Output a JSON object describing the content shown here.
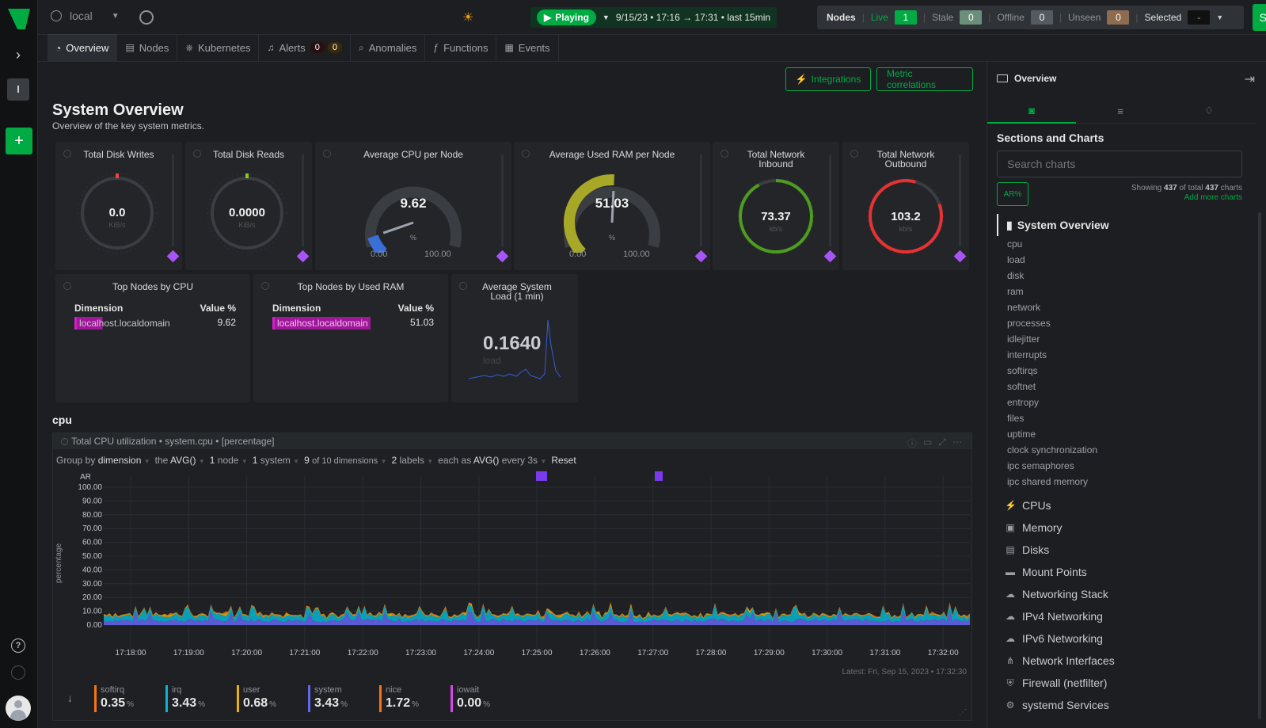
{
  "topbar": {
    "room": "local",
    "playing": "Playing",
    "time_range": "9/15/23 • 17:16 → 17:31 • last 15min",
    "nodes_label": "Nodes",
    "live_label": "Live",
    "live_count": "1",
    "stale_label": "Stale",
    "stale_count": "0",
    "offline_label": "Offline",
    "offline_count": "0",
    "unseen_label": "Unseen",
    "unseen_count": "0",
    "selected_label": "Selected",
    "selected_value": "-",
    "signin": "Sign in"
  },
  "leftbar": {
    "space_letter": "l"
  },
  "tabs": [
    {
      "label": "Overview"
    },
    {
      "label": "Nodes"
    },
    {
      "label": "Kubernetes"
    },
    {
      "label": "Alerts",
      "critical": "0",
      "warning": "0"
    },
    {
      "label": "Anomalies"
    },
    {
      "label": "Functions"
    },
    {
      "label": "Events"
    }
  ],
  "main": {
    "integrations": "Integrations",
    "metric_correlations": "Metric correlations",
    "title": "System Overview",
    "subtitle": "Overview of the key system metrics.",
    "gauges": [
      {
        "title": "Total Disk Writes",
        "value": "0.0",
        "unit": "KiB/s"
      },
      {
        "title": "Total Disk Reads",
        "value": "0.0000",
        "unit": "KiB/s"
      },
      {
        "title": "Average CPU per Node",
        "value": "9.62",
        "unit": "%",
        "min": "0.00",
        "max": "100.00",
        "fraction": 0.0962
      },
      {
        "title": "Average Used RAM per Node",
        "value": "51.03",
        "unit": "%",
        "min": "0.00",
        "max": "100.00",
        "fraction": 0.5103
      },
      {
        "title": "Total Network Inbound",
        "value": "73.37",
        "unit": "kb/s"
      },
      {
        "title": "Total Network Outbound",
        "value": "103.2",
        "unit": "kb/s"
      }
    ],
    "top_cpu": {
      "title": "Top Nodes by CPU",
      "dim_header": "Dimension",
      "val_header": "Value %",
      "rows": [
        {
          "name": "localhost.localdomain",
          "value": "9.62"
        }
      ]
    },
    "top_ram": {
      "title": "Top Nodes by Used RAM",
      "dim_header": "Dimension",
      "val_header": "Value %",
      "rows": [
        {
          "name": "localhost.localdomain",
          "value": "51.03"
        }
      ]
    },
    "load": {
      "title": "Average System Load (1 min)",
      "value": "0.1640",
      "unit": "load"
    },
    "section": "cpu"
  },
  "cpu_chart": {
    "title": "Total CPU utilization • system.cpu • [percentage]",
    "controls": {
      "group_by": "Group by",
      "group_val": "dimension",
      "agg_pre": "the",
      "agg": "AVG()",
      "nodes": "1",
      "nodes_label": "node",
      "systems": "1",
      "systems_label": "system",
      "dims": "9",
      "dims_label": "of 10 dimensions",
      "labels": "2",
      "labels_label": "labels",
      "each": "each as",
      "each_val": "AVG()",
      "every": "every 3s",
      "reset": "Reset"
    },
    "latest": "Latest: Fri, Sep 15, 2023 • 17:32:30",
    "ar_label": "AR",
    "ylabel": "percentage"
  },
  "chart_data": {
    "type": "area",
    "title": "Total CPU utilization • system.cpu • [percentage]",
    "ylabel": "percentage",
    "ylim": [
      0,
      100
    ],
    "yticks": [
      "100.00",
      "90.00",
      "80.00",
      "70.00",
      "60.00",
      "50.00",
      "40.00",
      "30.00",
      "20.00",
      "10.00",
      "0.00"
    ],
    "xticks": [
      "17:18:00",
      "17:19:00",
      "17:20:00",
      "17:21:00",
      "17:22:00",
      "17:23:00",
      "17:24:00",
      "17:25:00",
      "17:26:00",
      "17:27:00",
      "17:28:00",
      "17:29:00",
      "17:30:00",
      "17:31:00",
      "17:32:00"
    ],
    "series": [
      {
        "name": "softirq",
        "value": "0.35",
        "color": "#f97316"
      },
      {
        "name": "irq",
        "value": "3.43",
        "color": "#06b6d4"
      },
      {
        "name": "user",
        "value": "0.68",
        "color": "#eab308"
      },
      {
        "name": "system",
        "value": "3.43",
        "color": "#6366f1"
      },
      {
        "name": "nice",
        "value": "1.72",
        "color": "#f97316"
      },
      {
        "name": "iowait",
        "value": "0.00",
        "color": "#d946ef"
      }
    ],
    "unit": "%"
  },
  "right_panel": {
    "title": "Overview",
    "sections_title": "Sections and Charts",
    "search_placeholder": "Search charts",
    "ar_btn": "AR%",
    "showing_pre": "Showing",
    "showing_n": "437",
    "showing_mid": "of total",
    "showing_total": "437",
    "showing_post": "charts",
    "add_more": "Add more charts",
    "main_section": "System Overview",
    "subs": [
      "cpu",
      "load",
      "disk",
      "ram",
      "network",
      "processes",
      "idlejitter",
      "interrupts",
      "softirqs",
      "softnet",
      "entropy",
      "files",
      "uptime",
      "clock synchronization",
      "ipc semaphores",
      "ipc shared memory"
    ],
    "categories": [
      {
        "label": "CPUs",
        "icon": "bolt-icon"
      },
      {
        "label": "Memory",
        "icon": "chip-icon"
      },
      {
        "label": "Disks",
        "icon": "disk-icon"
      },
      {
        "label": "Mount Points",
        "icon": "drive-icon"
      },
      {
        "label": "Networking Stack",
        "icon": "cloud-icon"
      },
      {
        "label": "IPv4 Networking",
        "icon": "cloud-icon"
      },
      {
        "label": "IPv6 Networking",
        "icon": "cloud-icon"
      },
      {
        "label": "Network Interfaces",
        "icon": "network-icon"
      },
      {
        "label": "Firewall (netfilter)",
        "icon": "shield-icon"
      },
      {
        "label": "systemd Services",
        "icon": "gears-icon"
      }
    ]
  }
}
